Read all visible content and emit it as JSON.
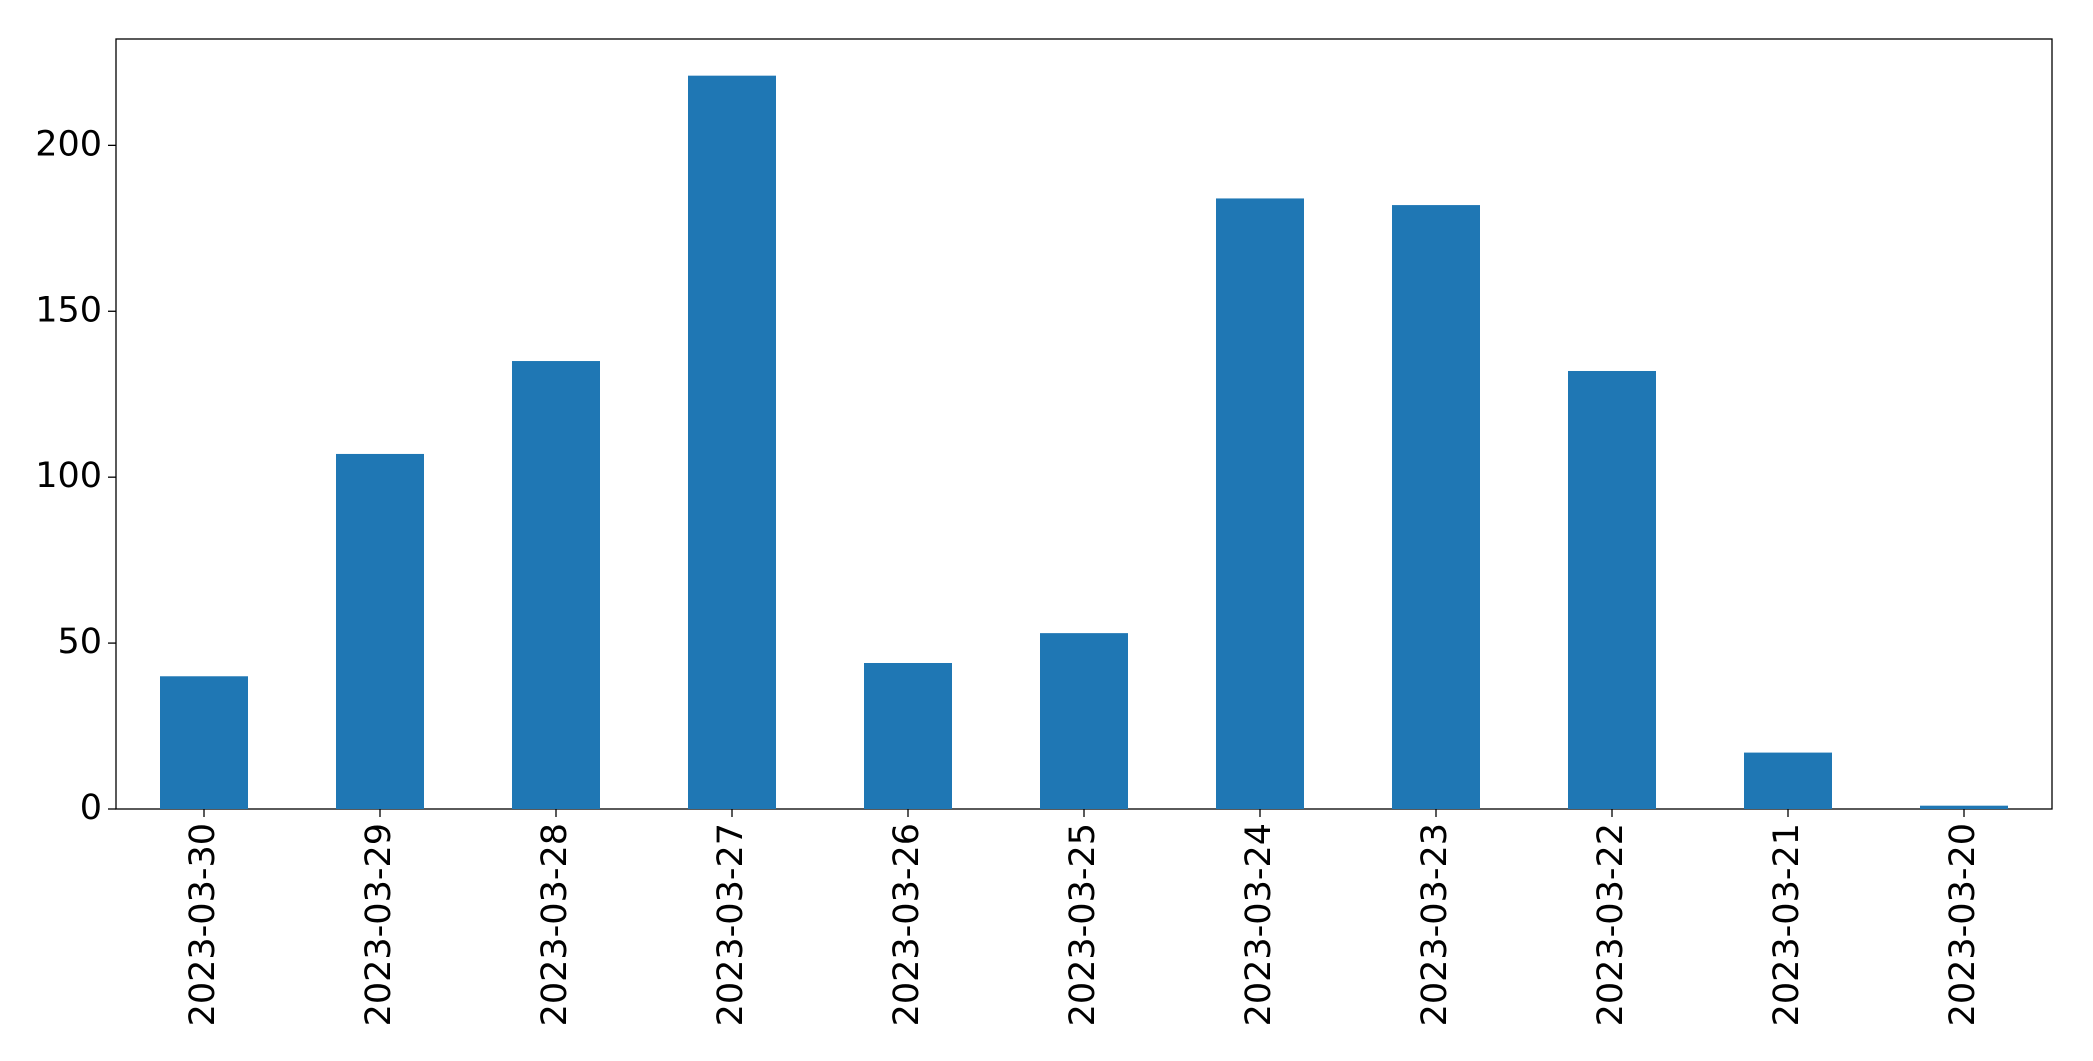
{
  "chart_data": {
    "type": "bar",
    "categories": [
      "2023-03-30",
      "2023-03-29",
      "2023-03-28",
      "2023-03-27",
      "2023-03-26",
      "2023-03-25",
      "2023-03-24",
      "2023-03-23",
      "2023-03-22",
      "2023-03-21",
      "2023-03-20"
    ],
    "values": [
      40,
      107,
      135,
      221,
      44,
      53,
      184,
      182,
      132,
      17,
      1
    ],
    "color": "#1f77b4",
    "ylim": [
      0,
      232.05
    ],
    "yticks": [
      0,
      50,
      100,
      150,
      200
    ],
    "grid": false
  }
}
